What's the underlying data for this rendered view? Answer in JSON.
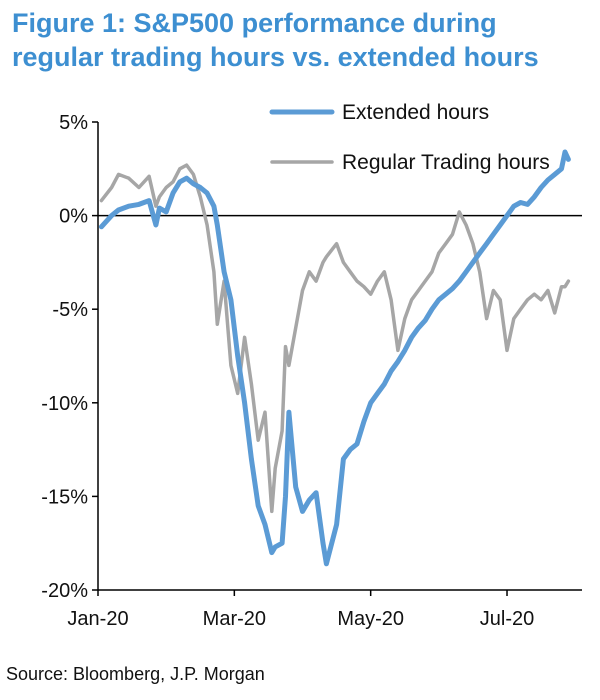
{
  "title": "Figure 1: S&P500 performance during regular trading hours vs. extended hours",
  "source": "Source: Bloomberg, J.P. Morgan",
  "chart_data": {
    "type": "line",
    "title": "Figure 1: S&P500 performance during regular trading hours vs. extended hours",
    "xlabel": "",
    "ylabel": "",
    "x_unit": "month",
    "xlim": [
      0,
      7.1
    ],
    "ylim": [
      -20,
      5
    ],
    "y_ticks": [
      5,
      0,
      -5,
      -10,
      -15,
      -20
    ],
    "y_tick_labels": [
      "5%",
      "0%",
      "-5%",
      "-10%",
      "-15%",
      "-20%"
    ],
    "x_ticks": [
      0,
      2,
      4,
      6
    ],
    "x_tick_labels": [
      "Jan-20",
      "Mar-20",
      "May-20",
      "Jul-20"
    ],
    "grid": false,
    "zero_line": true,
    "legend_position": "top-right",
    "colors": {
      "extended": "#5b9bd5",
      "regular": "#a6a6a6",
      "axis": "#000000"
    },
    "series": [
      {
        "name": "Extended hours",
        "key": "extended",
        "x": [
          0.05,
          0.2,
          0.3,
          0.45,
          0.6,
          0.75,
          0.85,
          0.9,
          1.0,
          1.1,
          1.2,
          1.3,
          1.4,
          1.5,
          1.6,
          1.7,
          1.75,
          1.85,
          1.95,
          2.05,
          2.15,
          2.25,
          2.35,
          2.45,
          2.55,
          2.6,
          2.7,
          2.75,
          2.8,
          2.9,
          3.0,
          3.1,
          3.2,
          3.3,
          3.35,
          3.5,
          3.6,
          3.7,
          3.8,
          3.9,
          4.0,
          4.1,
          4.2,
          4.3,
          4.4,
          4.5,
          4.6,
          4.7,
          4.8,
          4.9,
          5.0,
          5.1,
          5.2,
          5.3,
          5.4,
          5.5,
          5.6,
          5.7,
          5.8,
          5.9,
          6.0,
          6.1,
          6.2,
          6.3,
          6.4,
          6.5,
          6.6,
          6.7,
          6.8,
          6.85,
          6.9
        ],
        "y": [
          -0.6,
          0.0,
          0.3,
          0.5,
          0.6,
          0.8,
          -0.5,
          0.4,
          0.2,
          1.2,
          1.8,
          2.0,
          1.7,
          1.5,
          1.2,
          0.5,
          -0.5,
          -3.0,
          -4.5,
          -7.5,
          -10.0,
          -13.0,
          -15.5,
          -16.5,
          -18.0,
          -17.7,
          -17.5,
          -15.0,
          -10.5,
          -14.5,
          -15.8,
          -15.2,
          -14.8,
          -17.5,
          -18.6,
          -16.5,
          -13.0,
          -12.5,
          -12.2,
          -11.0,
          -10.0,
          -9.5,
          -9.0,
          -8.3,
          -7.8,
          -7.2,
          -6.5,
          -6.0,
          -5.6,
          -5.0,
          -4.5,
          -4.2,
          -3.9,
          -3.5,
          -3.0,
          -2.5,
          -2.0,
          -1.5,
          -1.0,
          -0.5,
          0.0,
          0.5,
          0.7,
          0.6,
          1.0,
          1.5,
          1.9,
          2.2,
          2.5,
          3.4,
          3.0
        ]
      },
      {
        "name": "Regular Trading hours",
        "key": "regular",
        "x": [
          0.05,
          0.2,
          0.3,
          0.45,
          0.6,
          0.75,
          0.85,
          0.9,
          1.0,
          1.1,
          1.2,
          1.3,
          1.4,
          1.5,
          1.6,
          1.7,
          1.75,
          1.85,
          1.95,
          2.05,
          2.15,
          2.25,
          2.35,
          2.45,
          2.55,
          2.6,
          2.7,
          2.75,
          2.8,
          2.9,
          3.0,
          3.1,
          3.2,
          3.3,
          3.35,
          3.5,
          3.6,
          3.7,
          3.8,
          3.9,
          4.0,
          4.1,
          4.2,
          4.3,
          4.4,
          4.5,
          4.6,
          4.7,
          4.8,
          4.9,
          5.0,
          5.1,
          5.2,
          5.3,
          5.4,
          5.5,
          5.6,
          5.7,
          5.8,
          5.9,
          6.0,
          6.1,
          6.2,
          6.3,
          6.4,
          6.5,
          6.6,
          6.7,
          6.8,
          6.85,
          6.9
        ],
        "y": [
          0.8,
          1.5,
          2.2,
          2.0,
          1.5,
          2.1,
          0.5,
          1.0,
          1.5,
          1.8,
          2.5,
          2.7,
          2.2,
          1.0,
          -0.5,
          -3.0,
          -5.8,
          -3.5,
          -8.0,
          -9.5,
          -6.5,
          -9.0,
          -12.0,
          -10.5,
          -15.8,
          -13.5,
          -11.5,
          -7.0,
          -8.0,
          -6.0,
          -4.0,
          -3.0,
          -3.5,
          -2.5,
          -2.2,
          -1.5,
          -2.5,
          -3.0,
          -3.5,
          -3.8,
          -4.2,
          -3.5,
          -3.0,
          -4.5,
          -7.2,
          -5.5,
          -4.5,
          -4.0,
          -3.5,
          -3.0,
          -2.0,
          -1.5,
          -1.0,
          0.2,
          -0.5,
          -1.5,
          -3.0,
          -5.5,
          -4.0,
          -4.5,
          -7.2,
          -5.5,
          -5.0,
          -4.5,
          -4.2,
          -4.5,
          -4.0,
          -5.2,
          -3.8,
          -3.8,
          -3.5
        ]
      }
    ]
  }
}
